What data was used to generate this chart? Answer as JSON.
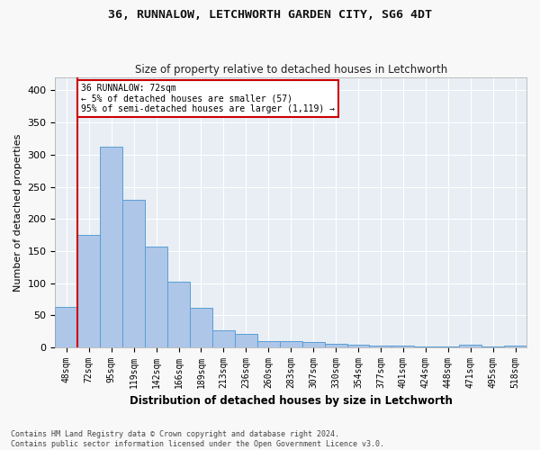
{
  "title1": "36, RUNNALOW, LETCHWORTH GARDEN CITY, SG6 4DT",
  "title2": "Size of property relative to detached houses in Letchworth",
  "xlabel": "Distribution of detached houses by size in Letchworth",
  "ylabel": "Number of detached properties",
  "categories": [
    "48sqm",
    "72sqm",
    "95sqm",
    "119sqm",
    "142sqm",
    "166sqm",
    "189sqm",
    "213sqm",
    "236sqm",
    "260sqm",
    "283sqm",
    "307sqm",
    "330sqm",
    "354sqm",
    "377sqm",
    "401sqm",
    "424sqm",
    "448sqm",
    "471sqm",
    "495sqm",
    "518sqm"
  ],
  "values": [
    63,
    175,
    312,
    230,
    157,
    103,
    62,
    27,
    21,
    10,
    10,
    8,
    6,
    4,
    3,
    3,
    2,
    2,
    4,
    2,
    3
  ],
  "bar_color": "#aec6e8",
  "bar_edge_color": "#5a9fd4",
  "background_color": "#e8eef4",
  "grid_color": "#ffffff",
  "annotation_line1": "36 RUNNALOW: 72sqm",
  "annotation_line2": "← 5% of detached houses are smaller (57)",
  "annotation_line3": "95% of semi-detached houses are larger (1,119) →",
  "vline_index": 1,
  "vline_color": "#cc0000",
  "annotation_box_color": "#cc0000",
  "ylim": [
    0,
    420
  ],
  "yticks": [
    0,
    50,
    100,
    150,
    200,
    250,
    300,
    350,
    400
  ],
  "fig_bg": "#f8f8f8",
  "footer1": "Contains HM Land Registry data © Crown copyright and database right 2024.",
  "footer2": "Contains public sector information licensed under the Open Government Licence v3.0."
}
